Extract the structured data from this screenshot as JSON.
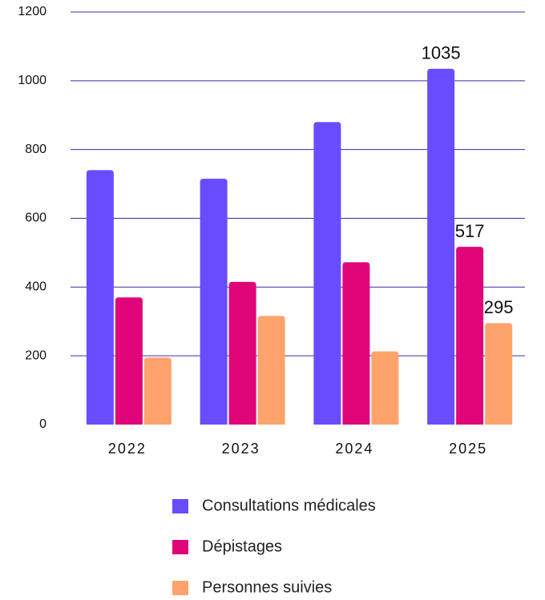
{
  "chart_data": {
    "type": "bar",
    "categories": [
      "2022",
      "2023",
      "2024",
      "2025"
    ],
    "series": [
      {
        "name": "Consultations médicales",
        "color": "#6a4cff",
        "values": [
          740,
          715,
          880,
          1035
        ]
      },
      {
        "name": "Dépistages",
        "color": "#e0067a",
        "values": [
          370,
          415,
          472,
          517
        ]
      },
      {
        "name": "Personnes suivies",
        "color": "#ffa36c",
        "values": [
          195,
          316,
          213,
          295
        ]
      }
    ],
    "ylim": [
      0,
      1200
    ],
    "yticks": [
      0,
      200,
      400,
      600,
      800,
      1000,
      1200
    ],
    "grid": true,
    "grid_color": "#3a2fa8",
    "data_labels": "last",
    "legend": "bottom"
  }
}
